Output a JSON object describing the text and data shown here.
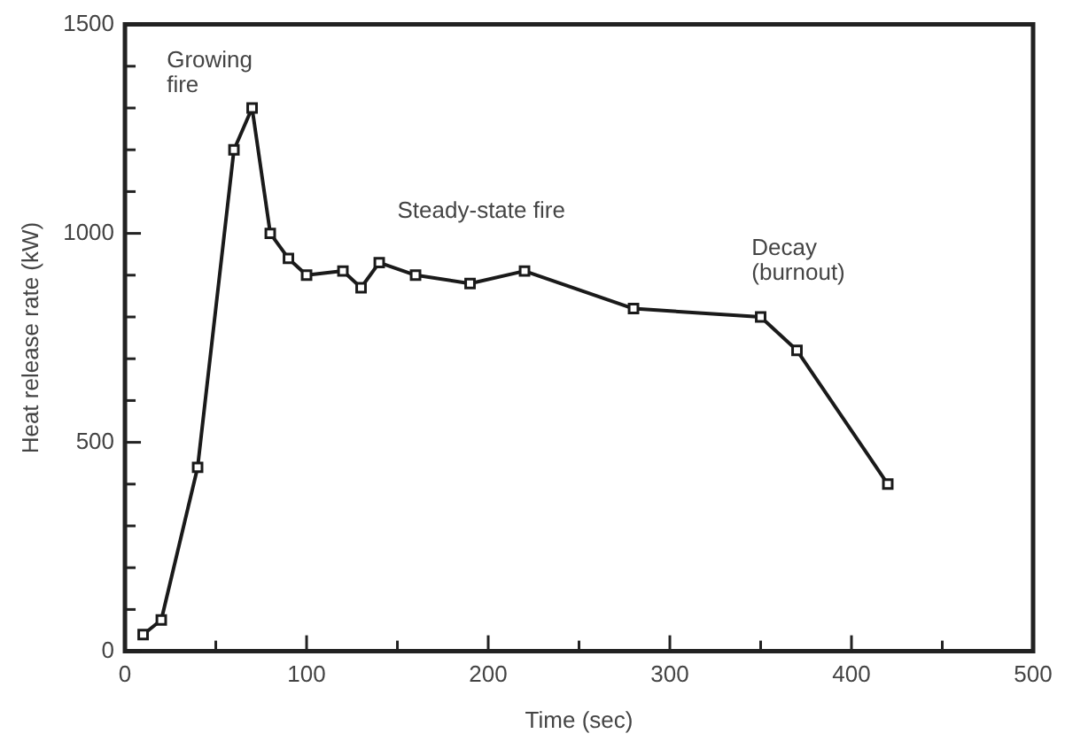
{
  "chart_data": {
    "type": "line",
    "xlabel": "Time (sec)",
    "ylabel": "Heat release rate (kW)",
    "x": [
      10,
      20,
      40,
      60,
      70,
      80,
      90,
      100,
      120,
      130,
      140,
      160,
      190,
      220,
      280,
      350,
      370,
      420
    ],
    "series": [
      {
        "color": "#1a1a1a",
        "values": [
          40,
          75,
          440,
          1200,
          1300,
          1000,
          940,
          900,
          910,
          870,
          930,
          900,
          880,
          910,
          820,
          800,
          720,
          400
        ]
      }
    ],
    "xlim": [
      0,
      500
    ],
    "xticks": [
      0,
      {
        "value": 50,
        "label": null
      },
      100,
      {
        "value": 150,
        "label": null
      },
      200,
      {
        "value": 250,
        "label": null
      },
      300,
      {
        "value": 350,
        "label": null
      },
      400,
      {
        "value": 450,
        "label": null
      },
      500
    ],
    "ylim": [
      0,
      1500
    ],
    "yticks": [
      0,
      {
        "value": 100,
        "label": null
      },
      {
        "value": 200,
        "label": null
      },
      {
        "value": 300,
        "label": null
      },
      {
        "value": 400,
        "label": null
      },
      500,
      {
        "value": 600,
        "label": null
      },
      {
        "value": 700,
        "label": null
      },
      {
        "value": 800,
        "label": null
      },
      {
        "value": 900,
        "label": null
      },
      1000,
      {
        "value": 1100,
        "label": null
      },
      {
        "value": 1200,
        "label": null
      },
      {
        "value": 1300,
        "label": null
      },
      {
        "value": 1400,
        "label": null
      },
      1500
    ],
    "annotations": [
      "Growing\nfire",
      "Steady-state fire",
      "Decay\n(burnout)"
    ],
    "grid": false,
    "legend": false,
    "marker": "square",
    "line_style": "solid"
  }
}
